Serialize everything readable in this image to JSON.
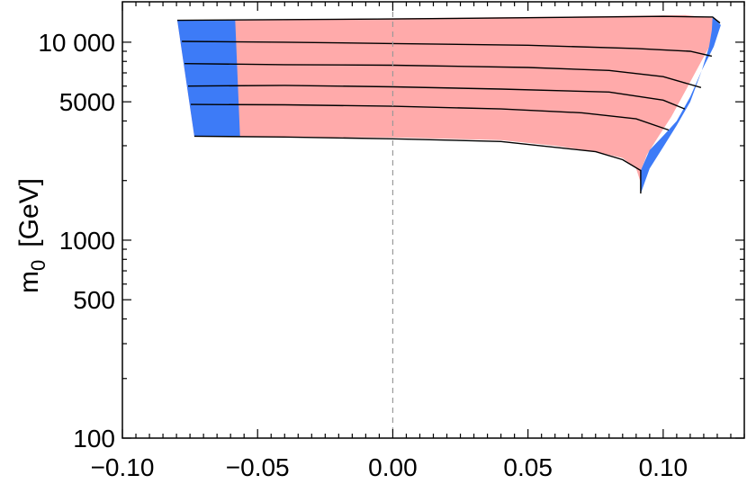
{
  "chart_data": {
    "type": "area",
    "title": "",
    "xlabel": "",
    "ylabel": "m0 [GeV]",
    "ylabel_main": "m",
    "ylabel_sub": "0",
    "ylabel_unit": "[GeV]",
    "xlim": [
      -0.1,
      0.13
    ],
    "ylim": [
      100,
      16000
    ],
    "yscale": "log",
    "grid": false,
    "legend": "none",
    "x_ticks": [
      {
        "value": -0.1,
        "label": "−0.10"
      },
      {
        "value": -0.05,
        "label": "−0.05"
      },
      {
        "value": 0.0,
        "label": "0.00"
      },
      {
        "value": 0.05,
        "label": "0.05"
      },
      {
        "value": 0.1,
        "label": "0.10"
      }
    ],
    "y_ticks": [
      {
        "value": 100,
        "label": "100"
      },
      {
        "value": 500,
        "label": "500"
      },
      {
        "value": 1000,
        "label": "1000"
      },
      {
        "value": 5000,
        "label": "5000"
      },
      {
        "value": 10000,
        "label": "10 000"
      }
    ],
    "reference_line_x": 0,
    "colors": {
      "pink_region": "#ffaaaa",
      "blue_region": "#3d7bf7",
      "contour": "#000000",
      "reference": "#999999"
    },
    "regions": [
      {
        "color": "pink",
        "boundary": [
          [
            -0.0797,
            12900
          ],
          [
            0.0,
            13200
          ],
          [
            0.05,
            13400
          ],
          [
            0.09,
            13600
          ],
          [
            0.1083,
            13700
          ],
          [
            0.118,
            13300
          ],
          [
            0.121,
            12200
          ],
          [
            0.118,
            10000
          ],
          [
            0.113,
            7500
          ],
          [
            0.108,
            5600
          ],
          [
            0.103,
            4200
          ],
          [
            0.098,
            3300
          ],
          [
            0.094,
            2700
          ],
          [
            0.0918,
            2250
          ],
          [
            0.0917,
            1720
          ],
          [
            0.092,
            1900
          ],
          [
            0.09,
            2300
          ],
          [
            0.085,
            2600
          ],
          [
            0.075,
            2800
          ],
          [
            0.06,
            3000
          ],
          [
            0.04,
            3200
          ],
          [
            0.0,
            3300
          ],
          [
            -0.04,
            3320
          ],
          [
            -0.0734,
            3350
          ]
        ]
      },
      {
        "color": "blue",
        "boundary": [
          [
            -0.0797,
            12900
          ],
          [
            -0.0583,
            13000
          ],
          [
            -0.0565,
            3350
          ],
          [
            -0.0734,
            3350
          ]
        ]
      },
      {
        "color": "blue",
        "boundary": [
          [
            0.1183,
            13500
          ],
          [
            0.1213,
            12200
          ],
          [
            0.1187,
            9500
          ],
          [
            0.1143,
            7200
          ],
          [
            0.11,
            5000
          ],
          [
            0.105,
            3800
          ],
          [
            0.1003,
            3000
          ],
          [
            0.095,
            2300
          ],
          [
            0.0917,
            1720
          ],
          [
            0.0917,
            2250
          ],
          [
            0.095,
            2850
          ],
          [
            0.1003,
            3400
          ],
          [
            0.105,
            4000
          ],
          [
            0.11,
            5300
          ],
          [
            0.1143,
            7200
          ],
          [
            0.117,
            9500
          ],
          [
            0.118,
            11500
          ]
        ]
      }
    ],
    "contours": [
      {
        "points": [
          [
            -0.0797,
            12900
          ],
          [
            -0.04,
            13000
          ],
          [
            0.0,
            13100
          ],
          [
            0.05,
            13300
          ],
          [
            0.1,
            13500
          ],
          [
            0.1183,
            13400
          ],
          [
            0.121,
            12500
          ]
        ]
      },
      {
        "points": [
          [
            -0.078,
            10100
          ],
          [
            -0.04,
            10000
          ],
          [
            0.0,
            9850
          ],
          [
            0.05,
            9650
          ],
          [
            0.09,
            9300
          ],
          [
            0.11,
            9000
          ],
          [
            0.118,
            8500
          ]
        ]
      },
      {
        "points": [
          [
            -0.077,
            7800
          ],
          [
            -0.04,
            7700
          ],
          [
            0.0,
            7650
          ],
          [
            0.05,
            7450
          ],
          [
            0.08,
            7200
          ],
          [
            0.1,
            6700
          ],
          [
            0.114,
            5900
          ]
        ]
      },
      {
        "points": [
          [
            -0.0757,
            6000
          ],
          [
            -0.04,
            6050
          ],
          [
            0.0,
            5950
          ],
          [
            0.04,
            5800
          ],
          [
            0.08,
            5600
          ],
          [
            0.1,
            5100
          ],
          [
            0.108,
            4600
          ]
        ]
      },
      {
        "points": [
          [
            -0.0747,
            4850
          ],
          [
            -0.04,
            4830
          ],
          [
            0.0,
            4750
          ],
          [
            0.04,
            4600
          ],
          [
            0.07,
            4400
          ],
          [
            0.09,
            4100
          ],
          [
            0.102,
            3600
          ]
        ]
      },
      {
        "points": [
          [
            -0.0734,
            3350
          ],
          [
            -0.04,
            3320
          ],
          [
            0.0,
            3250
          ],
          [
            0.04,
            3150
          ],
          [
            0.075,
            2800
          ],
          [
            0.085,
            2550
          ],
          [
            0.0917,
            2250
          ],
          [
            0.0917,
            1720
          ]
        ]
      }
    ]
  }
}
